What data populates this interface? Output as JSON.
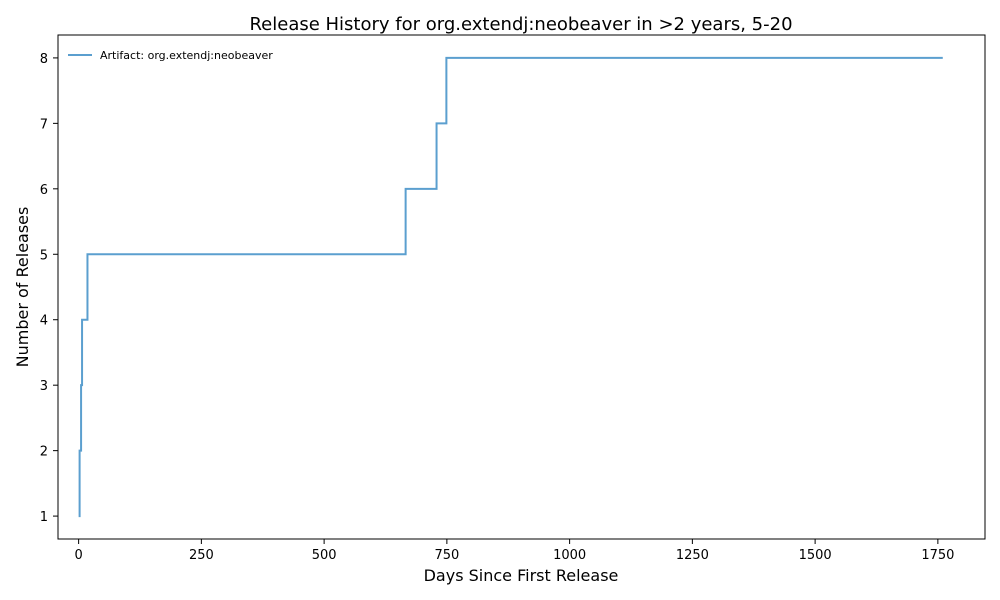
{
  "chart_data": {
    "type": "line",
    "step": "post",
    "title": "Release History for org.extendj:neobeaver in >2 years, 5-20",
    "xlabel": "Days Since First Release",
    "ylabel": "Number of Releases",
    "xlim": [
      -42,
      1846
    ],
    "ylim": [
      0.65,
      8.35
    ],
    "xticks": [
      0,
      250,
      500,
      750,
      1000,
      1250,
      1500,
      1750
    ],
    "yticks": [
      1,
      2,
      3,
      4,
      5,
      6,
      7,
      8
    ],
    "legend_position": "top-left",
    "series": [
      {
        "name": "Artifact: org.extendj:neobeaver",
        "color": "#5b9fcf",
        "x": [
          0,
          2,
          5,
          7,
          18,
          666,
          729,
          749,
          1760
        ],
        "y": [
          1,
          2,
          3,
          4,
          5,
          6,
          7,
          8,
          8
        ]
      }
    ]
  }
}
